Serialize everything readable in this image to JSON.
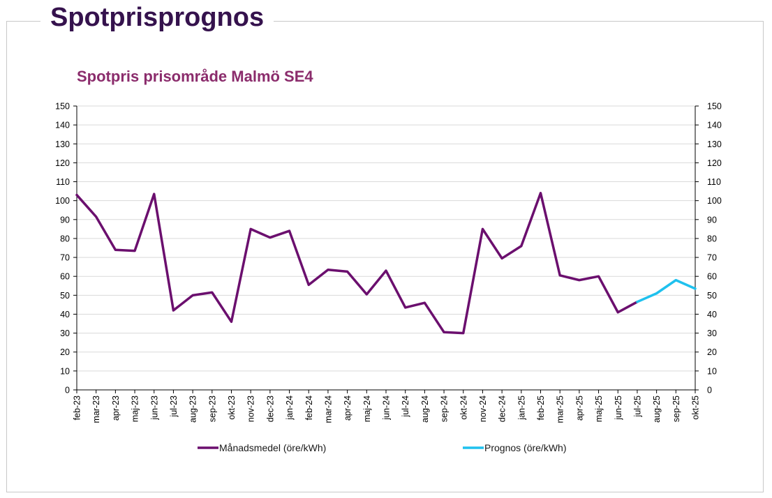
{
  "page": {
    "heading": "Spotprisprognos"
  },
  "colors": {
    "heading": "#35124d",
    "chart_title": "#8b2c6c",
    "monthly_series": "#6b0f6e",
    "forecast_series": "#1fc1ee",
    "axis": "#000000",
    "grid": "#d9d9d9"
  },
  "chart_data": {
    "type": "line",
    "title": "Spotpris prisområde Malmö SE4",
    "xlabel": "",
    "ylabel": "",
    "ylim": [
      0,
      150
    ],
    "y_ticks": [
      0,
      10,
      20,
      30,
      40,
      50,
      60,
      70,
      80,
      90,
      100,
      110,
      120,
      130,
      140,
      150
    ],
    "y_axes": "left and right",
    "grid": "horizontal",
    "legend_position": "bottom",
    "categories": [
      "feb-23",
      "mar-23",
      "apr-23",
      "maj-23",
      "jun-23",
      "jul-23",
      "aug-23",
      "sep-23",
      "okt-23",
      "nov-23",
      "dec-23",
      "jan-24",
      "feb-24",
      "mar-24",
      "apr-24",
      "maj-24",
      "jun-24",
      "jul-24",
      "aug-24",
      "sep-24",
      "okt-24",
      "nov-24",
      "dec-24",
      "jan-25",
      "feb-25",
      "mar-25",
      "apr-25",
      "maj-25",
      "jun-25",
      "jul-25",
      "aug-25",
      "sep-25",
      "okt-25"
    ],
    "series": [
      {
        "name": "Månadsmedel (öre/kWh)",
        "color": "#6b0f6e",
        "values": [
          103,
          91.5,
          74,
          73.5,
          103.5,
          42,
          50,
          51.5,
          36,
          85,
          80.5,
          84,
          55.5,
          63.5,
          62.5,
          50.5,
          63,
          43.5,
          46,
          30.5,
          30,
          85,
          69.5,
          76,
          104,
          60.5,
          58,
          60,
          41,
          46.5,
          null,
          null,
          null
        ]
      },
      {
        "name": "Prognos (öre/kWh)",
        "color": "#1fc1ee",
        "values": [
          null,
          null,
          null,
          null,
          null,
          null,
          null,
          null,
          null,
          null,
          null,
          null,
          null,
          null,
          null,
          null,
          null,
          null,
          null,
          null,
          null,
          null,
          null,
          null,
          null,
          null,
          null,
          null,
          null,
          46.5,
          51,
          58,
          53.5
        ]
      }
    ]
  }
}
